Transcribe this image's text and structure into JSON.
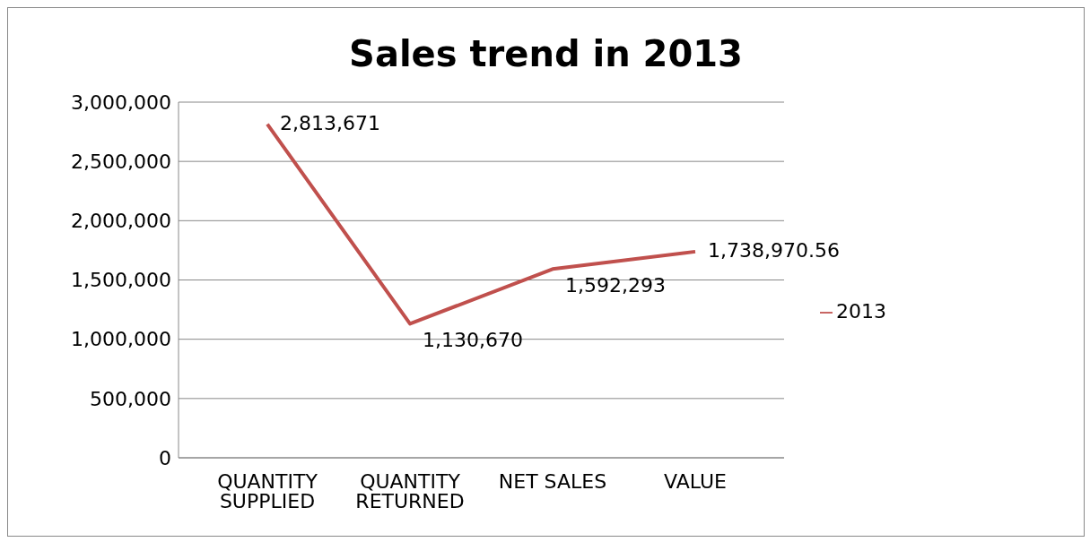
{
  "chart_data": {
    "type": "line",
    "title": "Sales trend in 2013",
    "categories": [
      "QUANTITY SUPPLIED",
      "QUANTITY RETURNED",
      "NET SALES",
      "VALUE"
    ],
    "series": [
      {
        "name": "2013",
        "color": "#c0504d",
        "values": [
          2813671,
          1130670,
          1592293,
          1738970.56
        ],
        "value_labels": [
          "2,813,671",
          "1,130,670",
          "1,592,293",
          "1,738,970.56"
        ]
      }
    ],
    "ylim": [
      0,
      3000000
    ],
    "yticks": [
      {
        "value": 0,
        "label": "0"
      },
      {
        "value": 500000,
        "label": "500,000"
      },
      {
        "value": 1000000,
        "label": "1,000,000"
      },
      {
        "value": 1500000,
        "label": "1,500,000"
      },
      {
        "value": 2000000,
        "label": "2,000,000"
      },
      {
        "value": 2500000,
        "label": "2,500,000"
      },
      {
        "value": 3000000,
        "label": "3,000,000"
      }
    ],
    "grid": "y",
    "legend": "right",
    "marker": "none",
    "line_style": "solid"
  }
}
